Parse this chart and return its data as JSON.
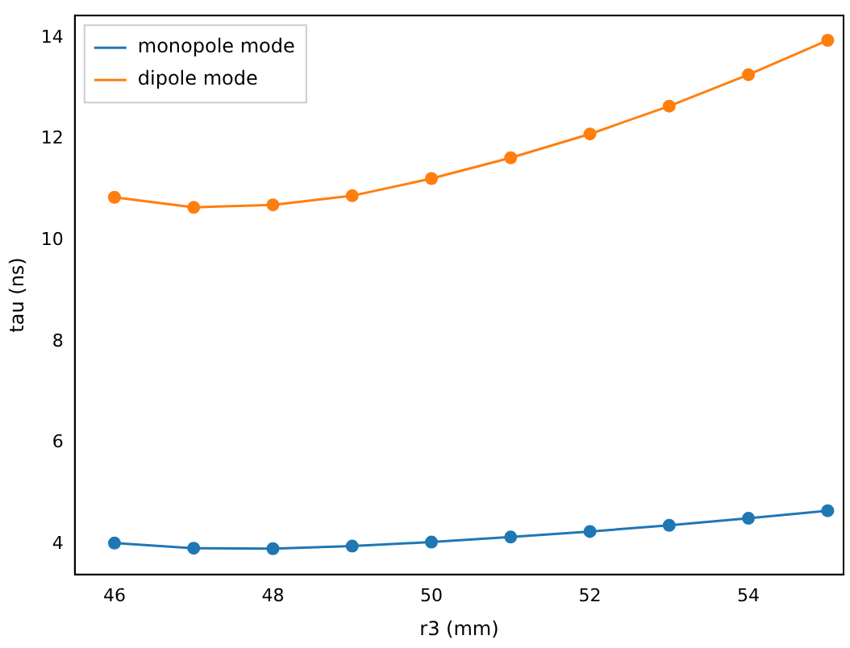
{
  "chart_data": {
    "type": "line",
    "xlabel": "r3 (mm)",
    "ylabel": "tau (ns)",
    "x": [
      46,
      47,
      48,
      49,
      50,
      51,
      52,
      53,
      54,
      55
    ],
    "series": [
      {
        "name": "monopole mode",
        "color": "#1f77b4",
        "values": [
          4.02,
          3.92,
          3.91,
          3.96,
          4.04,
          4.14,
          4.25,
          4.37,
          4.51,
          4.66
        ]
      },
      {
        "name": "dipole mode",
        "color": "#ff7f0e",
        "values": [
          10.85,
          10.65,
          10.7,
          10.88,
          11.22,
          11.63,
          12.1,
          12.65,
          13.27,
          13.95
        ]
      }
    ],
    "xlim": [
      45.5,
      55.2
    ],
    "xticks": [
      46,
      48,
      50,
      52,
      54
    ],
    "ylim": [
      3.4,
      14.44
    ],
    "yticks": [
      4,
      6,
      8,
      10,
      12,
      14
    ],
    "marker": "circle",
    "line_style": "solid",
    "grid": false,
    "legend": "top left"
  }
}
